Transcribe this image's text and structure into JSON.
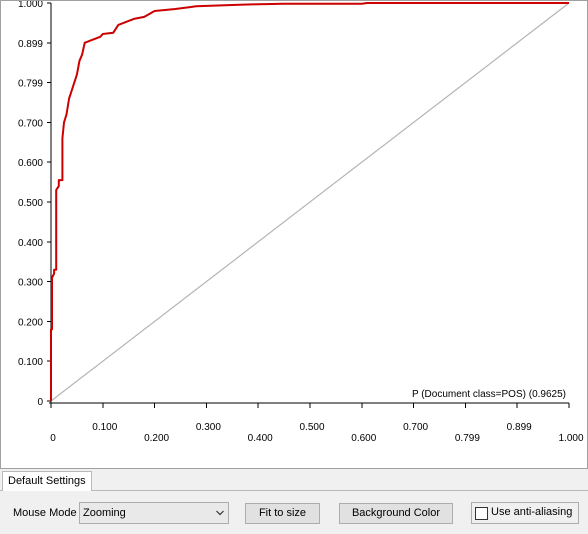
{
  "chart_data": {
    "type": "line",
    "title": "",
    "xlabel": "",
    "ylabel": "",
    "xlim": [
      0,
      1
    ],
    "ylim": [
      0,
      1
    ],
    "x_tick_labels": [
      "0",
      "0.100",
      "0.200",
      "0.300",
      "0.400",
      "0.500",
      "0.600",
      "0.700",
      "0.799",
      "0.899",
      "1.000"
    ],
    "y_tick_labels": [
      "0",
      "0.100",
      "0.200",
      "0.300",
      "0.400",
      "0.500",
      "0.600",
      "0.700",
      "0.799",
      "0.899",
      "1.000"
    ],
    "grid": false,
    "legend": "bottom-right",
    "series": [
      {
        "name": "P (Document class=POS) (0.9625)",
        "color": "#cc0000",
        "x": [
          0,
          0,
          0.002,
          0.002,
          0.006,
          0.006,
          0.01,
          0.01,
          0.015,
          0.015,
          0.022,
          0.022,
          0.025,
          0.03,
          0.035,
          0.04,
          0.045,
          0.05,
          0.055,
          0.06,
          0.065,
          0.075,
          0.085,
          0.095,
          0.1,
          0.12,
          0.13,
          0.14,
          0.16,
          0.18,
          0.2,
          0.24,
          0.27,
          0.28,
          0.35,
          0.4,
          0.45,
          0.6,
          0.61,
          0.98,
          1.0
        ],
        "y": [
          0,
          0.18,
          0.18,
          0.31,
          0.32,
          0.33,
          0.33,
          0.53,
          0.54,
          0.555,
          0.555,
          0.66,
          0.7,
          0.72,
          0.76,
          0.78,
          0.8,
          0.82,
          0.855,
          0.87,
          0.9,
          0.905,
          0.91,
          0.915,
          0.922,
          0.925,
          0.945,
          0.95,
          0.96,
          0.965,
          0.98,
          0.985,
          0.99,
          0.992,
          0.995,
          0.997,
          0.998,
          0.998,
          1.0,
          1.0,
          1.0
        ]
      },
      {
        "name": "",
        "color": "#b4b4b4",
        "x": [
          0,
          1
        ],
        "y": [
          0,
          1
        ]
      }
    ]
  },
  "settings": {
    "tab_label": "Default Settings",
    "mouse_mode_label": "Mouse Mode",
    "mouse_mode_value": "Zooming",
    "fit_button": "Fit to size",
    "bg_button": "Background Color",
    "antialias_label": "Use anti-aliasing",
    "antialias_checked": false
  }
}
